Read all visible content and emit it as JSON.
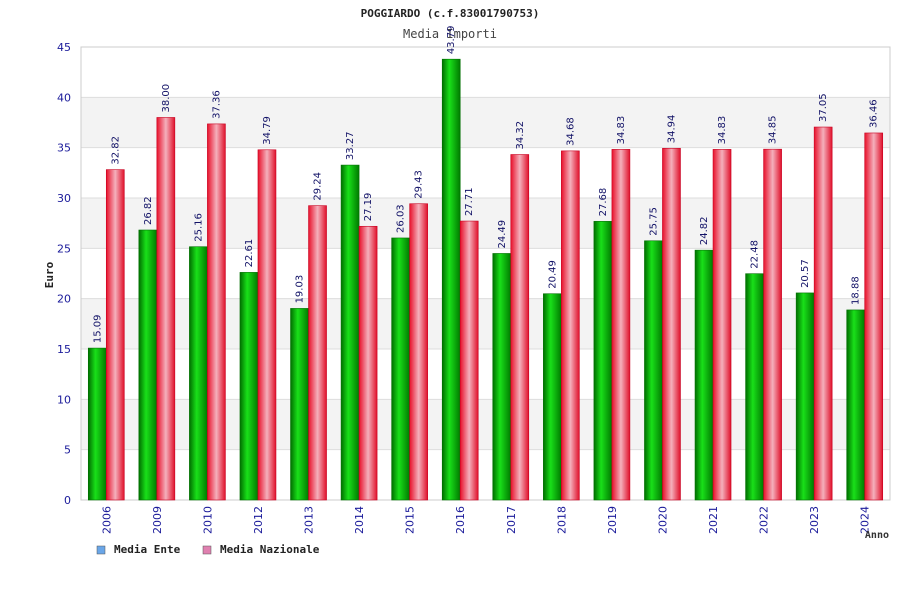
{
  "chart_data": {
    "type": "bar",
    "title": "POGGIARDO (c.f.83001790753)",
    "subtitle": "Media Importi",
    "xlabel": "Anno",
    "ylabel": "Euro",
    "ylim": [
      0,
      45
    ],
    "yticks": [
      0,
      5,
      10,
      15,
      20,
      25,
      30,
      35,
      40,
      45
    ],
    "grid": true,
    "legend_position": "bottom-left",
    "categories": [
      "2006",
      "2009",
      "2010",
      "2012",
      "2013",
      "2014",
      "2015",
      "2016",
      "2017",
      "2018",
      "2019",
      "2020",
      "2021",
      "2022",
      "2023",
      "2024"
    ],
    "series": [
      {
        "name": "Media Ente",
        "color": "#00b400",
        "legend_color": "#6aa6e8",
        "values": [
          15.09,
          26.82,
          25.16,
          22.61,
          19.03,
          33.27,
          26.03,
          43.79,
          24.49,
          20.49,
          27.68,
          25.75,
          24.82,
          22.48,
          20.57,
          18.88
        ],
        "labels": [
          "15.09",
          "26.82",
          "25.16",
          "22.61",
          "19.03",
          "33.27",
          "26.03",
          "43.79",
          "24.49",
          "20.49",
          "27.68",
          "25.75",
          "24.82",
          "22.48",
          "20.57",
          "18.88"
        ]
      },
      {
        "name": "Media Nazionale",
        "color": "#e8202e",
        "legend_color": "#e080b0",
        "values": [
          32.82,
          38.0,
          37.36,
          34.79,
          29.24,
          27.19,
          29.43,
          27.71,
          34.32,
          34.68,
          34.83,
          34.94,
          34.83,
          34.85,
          37.05,
          36.46
        ],
        "labels": [
          "32.82",
          "38.00",
          "37.36",
          "34.79",
          "29.24",
          "27.19",
          "29.43",
          "27.71",
          "34.32",
          "34.68",
          "34.83",
          "34.94",
          "34.83",
          "34.85",
          "37.05",
          "36.46"
        ]
      }
    ]
  }
}
